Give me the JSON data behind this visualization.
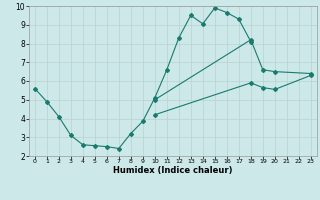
{
  "xlabel": "Humidex (Indice chaleur)",
  "xlim": [
    -0.5,
    23.5
  ],
  "ylim": [
    2,
    10
  ],
  "xticks": [
    0,
    1,
    2,
    3,
    4,
    5,
    6,
    7,
    8,
    9,
    10,
    11,
    12,
    13,
    14,
    15,
    16,
    17,
    18,
    19,
    20,
    21,
    22,
    23
  ],
  "yticks": [
    2,
    3,
    4,
    5,
    6,
    7,
    8,
    9,
    10
  ],
  "bg_color": "#cce8e8",
  "line_color": "#1a7a6e",
  "grid_color": "#b8d0d0",
  "series": [
    {
      "x": [
        0,
        1,
        2,
        3,
        4,
        5,
        6,
        7,
        8,
        9,
        10,
        11,
        12,
        13,
        14,
        15,
        16,
        17,
        18
      ],
      "y": [
        5.6,
        4.9,
        4.1,
        3.1,
        2.6,
        2.55,
        2.5,
        2.4,
        3.2,
        3.85,
        5.1,
        6.6,
        8.3,
        9.5,
        9.05,
        9.9,
        9.65,
        9.3,
        8.1
      ],
      "marker": true
    },
    {
      "x": [
        10,
        18,
        19,
        20,
        23
      ],
      "y": [
        5.0,
        8.2,
        6.6,
        6.5,
        6.4
      ],
      "marker": true
    },
    {
      "x": [
        10,
        18,
        19,
        20,
        23
      ],
      "y": [
        4.2,
        5.9,
        5.65,
        5.55,
        6.3
      ],
      "marker": true
    }
  ]
}
